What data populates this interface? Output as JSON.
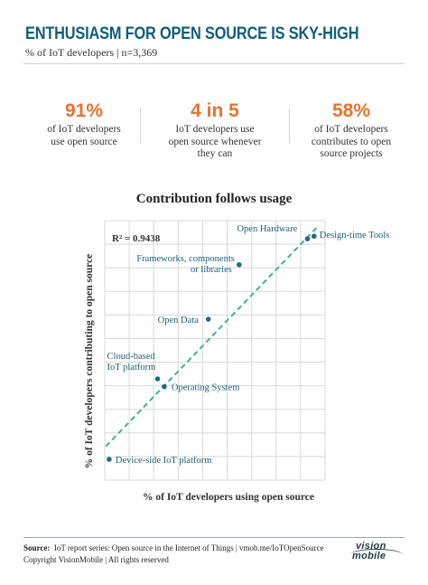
{
  "header": {
    "title": "ENTHUSIASM FOR OPEN SOURCE IS SKY-HIGH",
    "subtitle": "% of IoT developers | n=3,369"
  },
  "stats": [
    {
      "value": "91%",
      "desc_lines": [
        "of IoT developers",
        "use open source"
      ]
    },
    {
      "value": "4 in 5",
      "desc_lines": [
        "IoT developers use",
        "open source whenever",
        "they can"
      ]
    },
    {
      "value": "58%",
      "desc_lines": [
        "of IoT developers",
        "contributes to open",
        "source projects"
      ]
    }
  ],
  "chart_title": "Contribution follows usage",
  "chart_data": {
    "type": "scatter",
    "title": "Contribution follows usage",
    "xlabel": "% of IoT developers using open source",
    "ylabel": "% of IoT developers contributing to open source",
    "annotation": "R² = 0.9438",
    "axis_ticks_labeled": false,
    "grid": true,
    "trendline": {
      "style": "dashed",
      "color": "#3bb58a",
      "from": [
        0.005,
        0.13
      ],
      "to": [
        0.97,
        0.98
      ]
    },
    "points": [
      {
        "label": "Device-side IoT platform",
        "x": 0.02,
        "y": 0.08
      },
      {
        "label": "Cloud-based IoT platform",
        "x": 0.24,
        "y": 0.39
      },
      {
        "label": "Operating System",
        "x": 0.27,
        "y": 0.36
      },
      {
        "label": "Open Data",
        "x": 0.47,
        "y": 0.62
      },
      {
        "label": "Frameworks, components or libraries",
        "x": 0.61,
        "y": 0.83
      },
      {
        "label": "Open Hardware",
        "x": 0.92,
        "y": 0.93
      },
      {
        "label": "Design-time Tools",
        "x": 0.95,
        "y": 0.94
      }
    ]
  },
  "footer": {
    "source_label": "Source:",
    "source_text": "IoT report series: Open source in the Internet of Things | vmob.me/IoTOpenSource",
    "copyright": "Copyright VisionMobile | All rights reserved"
  },
  "logo": {
    "line1": "vision",
    "line2": "mobile"
  },
  "colors": {
    "title": "#0f5e78",
    "stat": "#e8722a",
    "point": "#1f6b83",
    "trend": "#3bb58a",
    "grid": "#d8d8d8",
    "label": "#1a5f78"
  }
}
